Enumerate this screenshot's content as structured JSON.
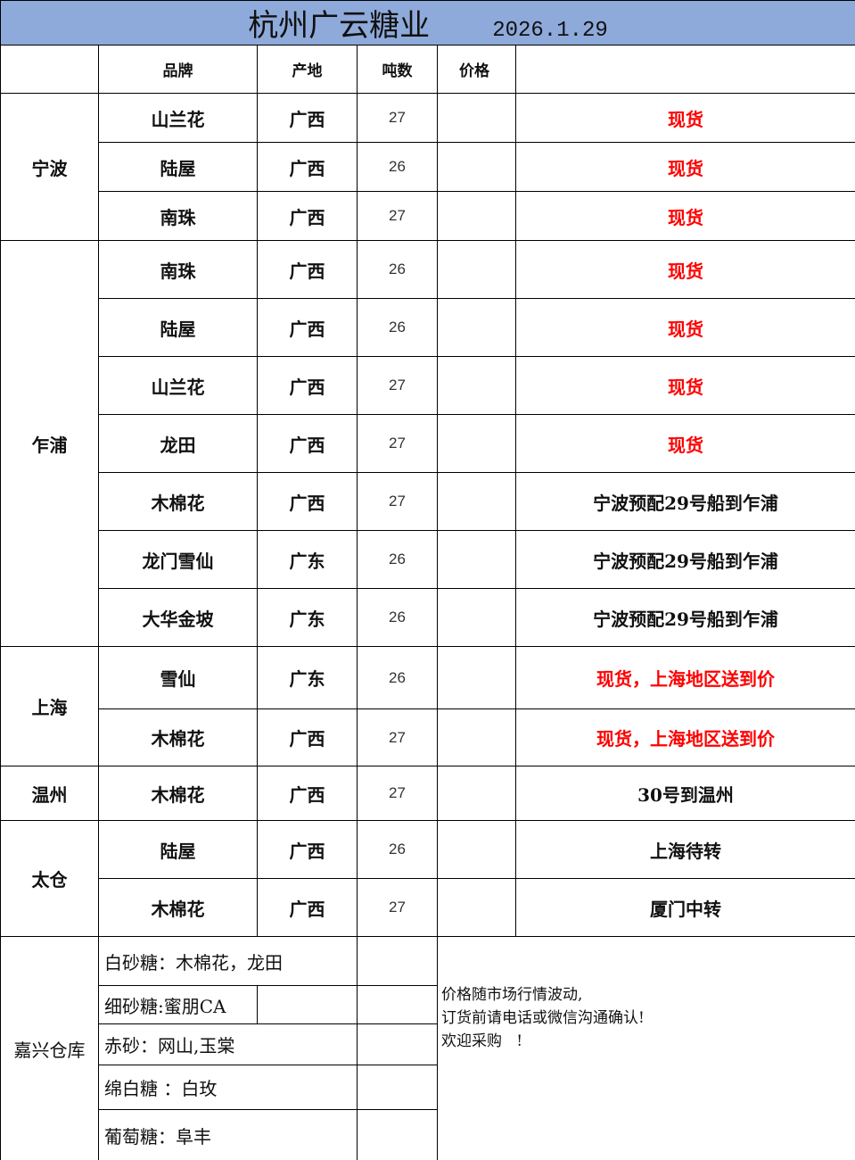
{
  "title": "杭州广云糖业",
  "date": "2026.1.29",
  "colors": {
    "header_bg": "#8eaadb",
    "highlight": "#ff0000"
  },
  "headers": [
    "",
    "品牌",
    "产地",
    "吨数",
    "价格",
    ""
  ],
  "groups": [
    {
      "location": "宁波",
      "rows": [
        {
          "brand": "山兰花",
          "origin": "广西",
          "tons": "27",
          "price": "",
          "note": "现货",
          "red": true
        },
        {
          "brand": "陆屋",
          "origin": "广西",
          "tons": "26",
          "price": "",
          "note": "现货",
          "red": true
        },
        {
          "brand": "南珠",
          "origin": "广西",
          "tons": "27",
          "price": "",
          "note": "现货",
          "red": true
        }
      ]
    },
    {
      "location": "乍浦",
      "rows": [
        {
          "brand": "南珠",
          "origin": "广西",
          "tons": "26",
          "price": "",
          "note": "现货",
          "red": true
        },
        {
          "brand": "陆屋",
          "origin": "广西",
          "tons": "26",
          "price": "",
          "note": "现货",
          "red": true
        },
        {
          "brand": "山兰花",
          "origin": "广西",
          "tons": "27",
          "price": "",
          "note": "现货",
          "red": true
        },
        {
          "brand": "龙田",
          "origin": "广西",
          "tons": "27",
          "price": "",
          "note": "现货",
          "red": true
        },
        {
          "brand": "木棉花",
          "origin": "广西",
          "tons": "27",
          "price": "",
          "note": "宁波预配29号船到乍浦",
          "red": false
        },
        {
          "brand": "龙门雪仙",
          "origin": "广东",
          "tons": "26",
          "price": "",
          "note": "宁波预配29号船到乍浦",
          "red": false
        },
        {
          "brand": "大华金坡",
          "origin": "广东",
          "tons": "26",
          "price": "",
          "note": "宁波预配29号船到乍浦",
          "red": false
        }
      ]
    },
    {
      "location": "上海",
      "rows": [
        {
          "brand": "雪仙",
          "origin": "广东",
          "tons": "26",
          "price": "",
          "note": "现货，上海地区送到价",
          "red": true
        },
        {
          "brand": "木棉花",
          "origin": "广西",
          "tons": "27",
          "price": "",
          "note": "现货，上海地区送到价",
          "red": true
        }
      ]
    },
    {
      "location": "温州",
      "rows": [
        {
          "brand": "木棉花",
          "origin": "广西",
          "tons": "27",
          "price": "",
          "note": "30号到温州",
          "red": false
        }
      ]
    },
    {
      "location": "太仓",
      "rows": [
        {
          "brand": "陆屋",
          "origin": "广西",
          "tons": "26",
          "price": "",
          "note": "上海待转",
          "red": false
        },
        {
          "brand": "木棉花",
          "origin": "广西",
          "tons": "27",
          "price": "",
          "note": "厦门中转",
          "red": false
        }
      ]
    }
  ],
  "jiaxing": {
    "location": "嘉兴仓库",
    "items": [
      "白砂糖：木棉花，龙田",
      "细砂糖:蜜朋CA",
      "赤砂：网山,玉棠",
      "绵白糖 ：白玫",
      "葡萄糖：阜丰"
    ],
    "notice": "价格随市场行情波动,\n订货前请电话或微信沟通确认!\n欢迎采购   !"
  }
}
